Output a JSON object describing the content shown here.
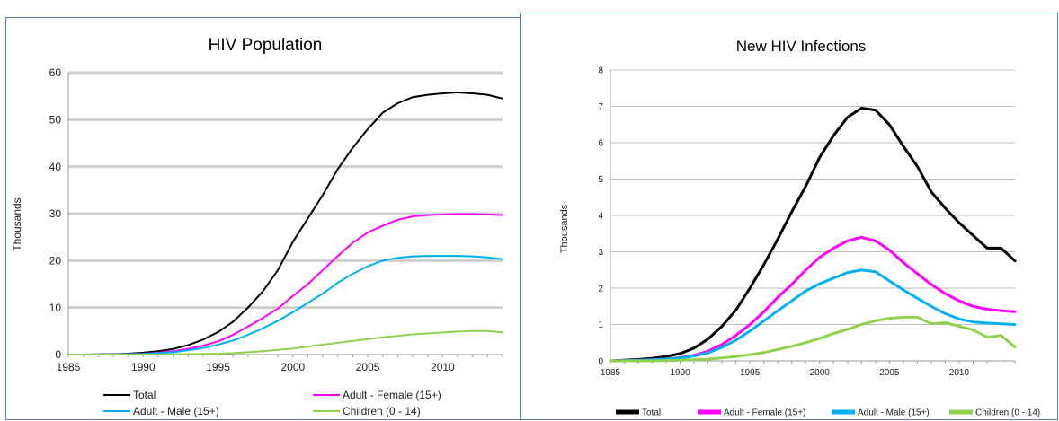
{
  "chart_data": [
    {
      "type": "line",
      "title": "HIV Population",
      "ylabel": "Thousands",
      "xlabel": "",
      "xlim": [
        1985,
        2014
      ],
      "ylim": [
        0,
        60
      ],
      "x_ticks": [
        "1985",
        "1990",
        "1995",
        "2000",
        "2005",
        "2010"
      ],
      "y_ticks": [
        "0",
        "10",
        "20",
        "30",
        "40",
        "50",
        "60"
      ],
      "grid": true,
      "legend_position": "bottom",
      "legend_labels": [
        "Total",
        "Adult - Female (15+)",
        "Adult - Male (15+)",
        "Children (0 - 14)"
      ],
      "x": [
        1985,
        1986,
        1987,
        1988,
        1989,
        1990,
        1991,
        1992,
        1993,
        1994,
        1995,
        1996,
        1997,
        1998,
        1999,
        2000,
        2001,
        2002,
        2003,
        2004,
        2005,
        2006,
        2007,
        2008,
        2009,
        2010,
        2011,
        2012,
        2013,
        2014
      ],
      "series": [
        {
          "name": "Total",
          "color": "#000000",
          "values": [
            0,
            0,
            0.05,
            0.1,
            0.2,
            0.4,
            0.7,
            1.2,
            2.0,
            3.2,
            4.8,
            7.0,
            10.0,
            13.5,
            18.0,
            24.0,
            29.0,
            34.0,
            39.5,
            44.0,
            48.0,
            51.5,
            53.5,
            54.8,
            55.3,
            55.6,
            55.8,
            55.6,
            55.3,
            54.5
          ]
        },
        {
          "name": "Adult - Female (15+)",
          "color": "#ff00ff",
          "values": [
            0,
            0,
            0,
            0.05,
            0.1,
            0.2,
            0.4,
            0.7,
            1.2,
            1.9,
            2.8,
            4.2,
            6.0,
            7.8,
            9.8,
            12.5,
            15.0,
            18.0,
            21.0,
            23.8,
            26.0,
            27.4,
            28.7,
            29.4,
            29.7,
            29.8,
            29.9,
            29.9,
            29.8,
            29.7
          ]
        },
        {
          "name": "Adult - Male (15+)",
          "color": "#00b0f0",
          "values": [
            0,
            0,
            0,
            0.05,
            0.1,
            0.15,
            0.3,
            0.5,
            0.9,
            1.4,
            2.1,
            3.0,
            4.2,
            5.6,
            7.2,
            9.0,
            11.0,
            13.0,
            15.3,
            17.2,
            18.8,
            20.0,
            20.6,
            20.9,
            21.0,
            21.0,
            21.0,
            20.9,
            20.7,
            20.3
          ]
        },
        {
          "name": "Children (0 - 14)",
          "color": "#92d050",
          "values": [
            0,
            0,
            0,
            0,
            0,
            0,
            0,
            0.05,
            0.1,
            0.15,
            0.2,
            0.3,
            0.5,
            0.7,
            1.0,
            1.3,
            1.7,
            2.1,
            2.5,
            2.9,
            3.3,
            3.7,
            4.0,
            4.3,
            4.5,
            4.7,
            4.9,
            5.0,
            5.0,
            4.7
          ]
        }
      ]
    },
    {
      "type": "line",
      "title": "New HIV Infections",
      "ylabel": "Thousands",
      "xlabel": "",
      "xlim": [
        1985,
        2014
      ],
      "ylim": [
        0,
        8
      ],
      "x_ticks": [
        "1985",
        "1990",
        "1995",
        "2000",
        "2005",
        "2010"
      ],
      "y_ticks": [
        "0",
        "1",
        "2",
        "3",
        "4",
        "5",
        "6",
        "7",
        "8"
      ],
      "grid": true,
      "legend_position": "bottom",
      "legend_labels": [
        "Total",
        "Adult - Female (15+)",
        "Adult - Male (15+)",
        "Children (0 - 14)"
      ],
      "x": [
        1985,
        1986,
        1987,
        1988,
        1989,
        1990,
        1991,
        1992,
        1993,
        1994,
        1995,
        1996,
        1997,
        1998,
        1999,
        2000,
        2001,
        2002,
        2003,
        2004,
        2005,
        2006,
        2007,
        2008,
        2009,
        2010,
        2011,
        2012,
        2013,
        2014
      ],
      "series": [
        {
          "name": "Total",
          "color": "#000000",
          "values": [
            0,
            0.02,
            0.04,
            0.07,
            0.12,
            0.2,
            0.35,
            0.6,
            0.95,
            1.4,
            2.0,
            2.65,
            3.35,
            4.1,
            4.8,
            5.6,
            6.2,
            6.7,
            6.95,
            6.9,
            6.5,
            5.9,
            5.35,
            4.65,
            4.2,
            3.8,
            3.45,
            3.1,
            3.1,
            2.75
          ]
        },
        {
          "name": "Adult - Female (15+)",
          "color": "#ff00ff",
          "values": [
            0,
            0.01,
            0.02,
            0.03,
            0.05,
            0.09,
            0.15,
            0.27,
            0.45,
            0.7,
            1.0,
            1.35,
            1.75,
            2.1,
            2.5,
            2.85,
            3.1,
            3.3,
            3.4,
            3.3,
            3.05,
            2.7,
            2.4,
            2.1,
            1.85,
            1.65,
            1.5,
            1.42,
            1.38,
            1.35
          ]
        },
        {
          "name": "Adult - Male (15+)",
          "color": "#00b0f0",
          "values": [
            0,
            0.01,
            0.02,
            0.03,
            0.05,
            0.08,
            0.13,
            0.22,
            0.37,
            0.57,
            0.82,
            1.1,
            1.38,
            1.65,
            1.92,
            2.12,
            2.28,
            2.43,
            2.5,
            2.45,
            2.2,
            1.95,
            1.72,
            1.5,
            1.3,
            1.15,
            1.07,
            1.04,
            1.02,
            1.0
          ]
        },
        {
          "name": "Children (0 - 14)",
          "color": "#92d050",
          "values": [
            0,
            0,
            0,
            0,
            0.01,
            0.02,
            0.03,
            0.05,
            0.08,
            0.12,
            0.17,
            0.23,
            0.31,
            0.4,
            0.5,
            0.62,
            0.75,
            0.87,
            1.0,
            1.1,
            1.17,
            1.2,
            1.2,
            1.02,
            1.05,
            0.95,
            0.85,
            0.65,
            0.7,
            0.38
          ]
        }
      ]
    }
  ]
}
